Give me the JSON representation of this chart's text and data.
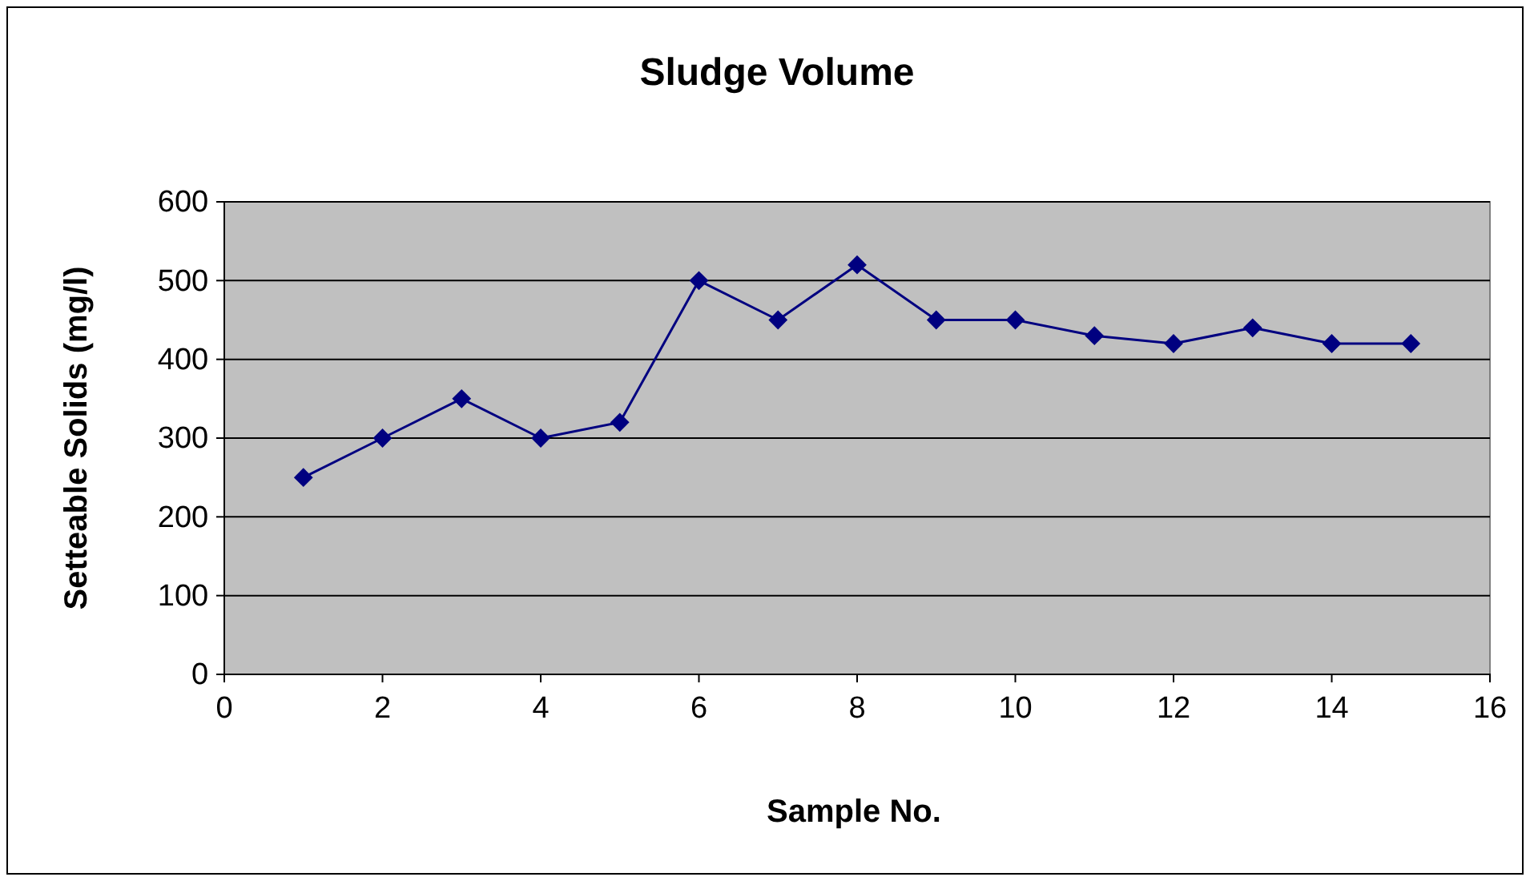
{
  "chart_data": {
    "type": "line",
    "title": "Sludge Volume",
    "xlabel": "Sample No.",
    "ylabel": "Setteable Solids (mg/l)",
    "x": [
      1,
      2,
      3,
      4,
      5,
      6,
      7,
      8,
      9,
      10,
      11,
      12,
      13,
      14,
      15
    ],
    "series": [
      {
        "color": "#000080",
        "values": [
          250,
          300,
          350,
          300,
          320,
          500,
          450,
          520,
          450,
          450,
          430,
          420,
          440,
          420,
          420
        ]
      }
    ],
    "xlim": [
      0,
      16
    ],
    "xticks": [
      0,
      2,
      4,
      6,
      8,
      10,
      12,
      14,
      16
    ],
    "ylim": [
      0,
      600
    ],
    "yticks": [
      0,
      100,
      200,
      300,
      400,
      500,
      600
    ],
    "grid": "y",
    "marker": "diamond",
    "line_style": "solid"
  }
}
